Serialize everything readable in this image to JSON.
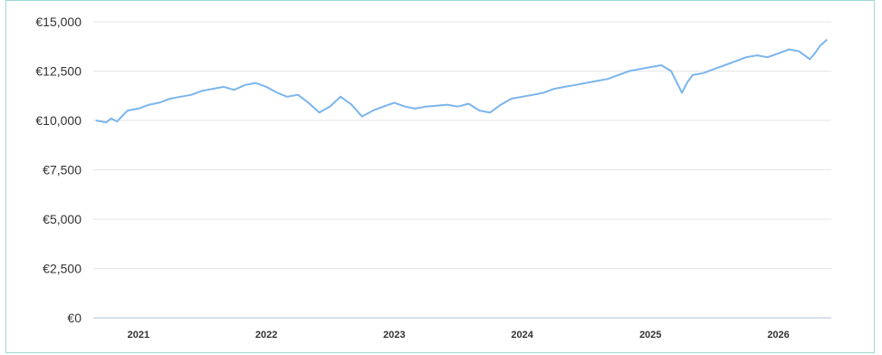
{
  "chart_data": {
    "type": "line",
    "title": "",
    "xlabel": "",
    "ylabel": "",
    "ylim": [
      0,
      15000
    ],
    "yticks": [
      "€0",
      "€2,500",
      "€5,000",
      "€7,500",
      "€10,000",
      "€12,500",
      "€15,000"
    ],
    "ytick_values": [
      0,
      2500,
      5000,
      7500,
      10000,
      12500,
      15000
    ],
    "xlim": [
      "2020-08-25",
      "2026-06-01"
    ],
    "xticks": [
      "2021",
      "2022",
      "2023",
      "2024",
      "2025",
      "2026"
    ],
    "grid": true,
    "legend": "none",
    "series_color": "#7cb5ec",
    "series": [
      {
        "x": [
          "2020-09-01",
          "2020-10-01",
          "2020-10-15",
          "2020-11-01",
          "2020-12-01",
          "2021-01-01",
          "2021-02-01",
          "2021-03-01",
          "2021-04-01",
          "2021-05-01",
          "2021-06-01",
          "2021-07-01",
          "2021-08-01",
          "2021-09-01",
          "2021-10-01",
          "2021-11-01",
          "2021-12-01",
          "2022-01-01",
          "2022-02-01",
          "2022-03-01",
          "2022-04-01",
          "2022-05-01",
          "2022-06-01",
          "2022-07-01",
          "2022-08-01",
          "2022-09-01",
          "2022-10-01",
          "2022-11-01",
          "2022-12-01",
          "2023-01-01",
          "2023-02-01",
          "2023-03-01",
          "2023-04-01",
          "2023-05-01",
          "2023-06-01",
          "2023-07-01",
          "2023-08-01",
          "2023-09-01",
          "2023-10-01",
          "2023-11-01",
          "2023-12-01",
          "2024-01-01",
          "2024-02-01",
          "2024-03-01",
          "2024-04-01",
          "2024-05-01",
          "2024-06-01",
          "2024-07-01",
          "2024-08-01",
          "2024-09-01",
          "2024-10-01",
          "2024-11-01",
          "2024-12-01",
          "2025-01-01",
          "2025-02-01",
          "2025-03-01",
          "2025-04-01",
          "2025-04-15",
          "2025-05-01",
          "2025-06-01",
          "2025-07-01",
          "2025-08-01",
          "2025-09-01",
          "2025-10-01",
          "2025-11-01",
          "2025-12-01",
          "2026-01-01",
          "2026-02-01",
          "2026-03-01",
          "2026-04-01",
          "2026-04-15",
          "2026-05-01",
          "2026-05-20"
        ],
        "values": [
          10000,
          9900,
          10100,
          9950,
          10500,
          10600,
          10800,
          10900,
          11100,
          11200,
          11300,
          11500,
          11600,
          11700,
          11550,
          11800,
          11900,
          11700,
          11400,
          11200,
          11300,
          10900,
          10400,
          10700,
          11200,
          10800,
          10200,
          10500,
          10700,
          10900,
          10700,
          10600,
          10700,
          10750,
          10800,
          10700,
          10850,
          10500,
          10400,
          10800,
          11100,
          11200,
          11300,
          11400,
          11600,
          11700,
          11800,
          11900,
          12000,
          12100,
          12300,
          12500,
          12600,
          12700,
          12800,
          12500,
          11400,
          11900,
          12300,
          12400,
          12600,
          12800,
          13000,
          13200,
          13300,
          13200,
          13400,
          13600,
          13500,
          13100,
          13400,
          13800,
          14100
        ]
      }
    ]
  }
}
